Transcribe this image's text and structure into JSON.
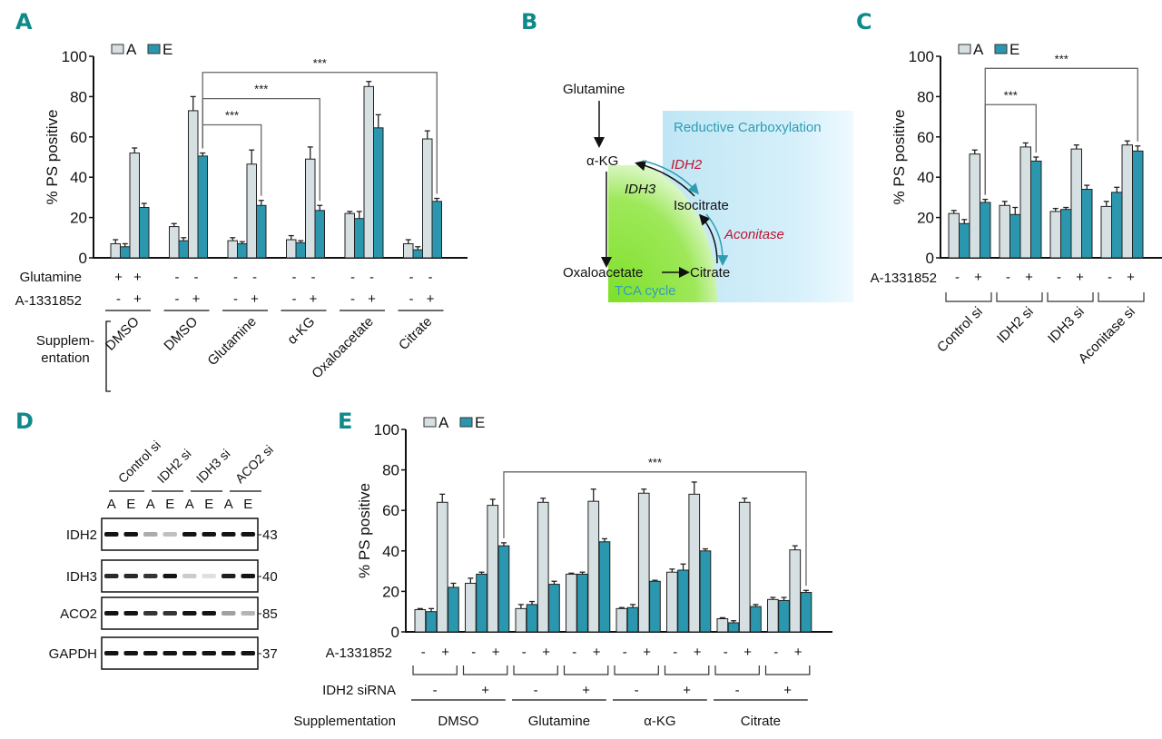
{
  "colors": {
    "A": "#d6dfe1",
    "E": "#2b97ae",
    "panel_label": "#0e8a8a",
    "rc_text": "#2e9db3",
    "enzyme_red": "#c0132e",
    "tca_text": "#33a0b6"
  },
  "panel_labels": {
    "A": "A",
    "B": "B",
    "C": "C",
    "D": "D",
    "E": "E"
  },
  "chart_data": [
    {
      "id": "A",
      "type": "bar",
      "ylabel": "% PS positive",
      "ylim": [
        0,
        100
      ],
      "yticks": [
        "0",
        "20",
        "40",
        "60",
        "80",
        "100"
      ],
      "legend": [
        "A",
        "E"
      ],
      "legend_position": "top-left",
      "groups": [
        {
          "bars": [
            {
              "s": "A",
              "v": 7,
              "err": 2
            },
            {
              "s": "E",
              "v": 5.5,
              "err": 1.5
            },
            {
              "s": "A",
              "v": 52,
              "err": 2.5
            },
            {
              "s": "E",
              "v": 25,
              "err": 2
            }
          ]
        },
        {
          "bars": [
            {
              "s": "A",
              "v": 15.5,
              "err": 1.5
            },
            {
              "s": "E",
              "v": 8.5,
              "err": 1.5
            },
            {
              "s": "A",
              "v": 73,
              "err": 7
            },
            {
              "s": "E",
              "v": 50.5,
              "err": 1.5
            }
          ]
        },
        {
          "bars": [
            {
              "s": "A",
              "v": 8.5,
              "err": 1.5
            },
            {
              "s": "E",
              "v": 7,
              "err": 1
            },
            {
              "s": "A",
              "v": 46.5,
              "err": 7
            },
            {
              "s": "E",
              "v": 26,
              "err": 2.5
            }
          ]
        },
        {
          "bars": [
            {
              "s": "A",
              "v": 9,
              "err": 2
            },
            {
              "s": "E",
              "v": 7.5,
              "err": 1
            },
            {
              "s": "A",
              "v": 49,
              "err": 6
            },
            {
              "s": "E",
              "v": 23.5,
              "err": 2.5
            }
          ]
        },
        {
          "bars": [
            {
              "s": "A",
              "v": 22,
              "err": 1
            },
            {
              "s": "E",
              "v": 19.5,
              "err": 3.5
            },
            {
              "s": "A",
              "v": 85,
              "err": 2.5
            },
            {
              "s": "E",
              "v": 64.5,
              "err": 6.5
            }
          ]
        },
        {
          "bars": [
            {
              "s": "A",
              "v": 7,
              "err": 2
            },
            {
              "s": "E",
              "v": 4,
              "err": 1.5
            },
            {
              "s": "A",
              "v": 59,
              "err": 4
            },
            {
              "s": "E",
              "v": 28,
              "err": 1.5
            }
          ]
        }
      ],
      "significance": [
        {
          "from_group": 1,
          "from_bar": 3,
          "to_group": 2,
          "to_bar": 3,
          "level": 66,
          "label": "***"
        },
        {
          "from_group": 1,
          "from_bar": 3,
          "to_group": 3,
          "to_bar": 3,
          "level": 79,
          "label": "***"
        },
        {
          "from_group": 1,
          "from_bar": 3,
          "to_group": 5,
          "to_bar": 3,
          "level": 92,
          "label": "***"
        }
      ],
      "row_labels": {
        "glutamine": "Glutamine",
        "drug": "A-1331852",
        "supplementation": "Supplem-\nentation"
      },
      "glutamine_row": [
        [
          "+",
          "+"
        ],
        [
          "-",
          "-"
        ],
        [
          "-",
          "-"
        ],
        [
          "-",
          "-"
        ],
        [
          "-",
          "-"
        ],
        [
          "-",
          "-"
        ]
      ],
      "drug_row": [
        [
          "-",
          "+"
        ],
        [
          "-",
          "+"
        ],
        [
          "-",
          "+"
        ],
        [
          "-",
          "+"
        ],
        [
          "-",
          "+"
        ],
        [
          "-",
          "+"
        ]
      ],
      "supplementation": [
        "DMSO",
        "DMSO",
        "Glutamine",
        "α-KG",
        "Oxaloacetate",
        "Citrate"
      ]
    },
    {
      "id": "C",
      "type": "bar",
      "ylabel": "% PS positive",
      "ylim": [
        0,
        100
      ],
      "yticks": [
        "0",
        "20",
        "40",
        "60",
        "80",
        "100"
      ],
      "legend": [
        "A",
        "E"
      ],
      "legend_position": "top-left",
      "groups": [
        {
          "bars": [
            {
              "s": "A",
              "v": 22,
              "err": 1.5
            },
            {
              "s": "E",
              "v": 17,
              "err": 2
            },
            {
              "s": "A",
              "v": 51.5,
              "err": 2
            },
            {
              "s": "E",
              "v": 27.5,
              "err": 1.5
            }
          ]
        },
        {
          "bars": [
            {
              "s": "A",
              "v": 26,
              "err": 2
            },
            {
              "s": "E",
              "v": 21.5,
              "err": 3.5
            },
            {
              "s": "A",
              "v": 55,
              "err": 2
            },
            {
              "s": "E",
              "v": 48,
              "err": 2
            }
          ]
        },
        {
          "bars": [
            {
              "s": "A",
              "v": 23,
              "err": 1.5
            },
            {
              "s": "E",
              "v": 24,
              "err": 1
            },
            {
              "s": "A",
              "v": 54,
              "err": 2
            },
            {
              "s": "E",
              "v": 34,
              "err": 2
            }
          ]
        },
        {
          "bars": [
            {
              "s": "A",
              "v": 25.5,
              "err": 2.5
            },
            {
              "s": "E",
              "v": 32.5,
              "err": 2.5
            },
            {
              "s": "A",
              "v": 56,
              "err": 2
            },
            {
              "s": "E",
              "v": 53,
              "err": 2.5
            }
          ]
        }
      ],
      "significance": [
        {
          "from_group": 0,
          "from_bar": 3,
          "to_group": 1,
          "to_bar": 3,
          "level": 76,
          "label": "***"
        },
        {
          "from_group": 0,
          "from_bar": 3,
          "to_group": 3,
          "to_bar": 3,
          "level": 94,
          "label": "***"
        }
      ],
      "row_labels": {
        "drug": "A-1331852"
      },
      "drug_row": [
        [
          "-",
          "+"
        ],
        [
          "-",
          "+"
        ],
        [
          "-",
          "+"
        ],
        [
          "-",
          "+"
        ]
      ],
      "groups_labels": [
        "Control si",
        "IDH2 si",
        "IDH3 si",
        "Aconitase si"
      ]
    },
    {
      "id": "E",
      "type": "bar",
      "ylabel": "% PS positive",
      "ylim": [
        0,
        100
      ],
      "yticks": [
        "0",
        "20",
        "40",
        "60",
        "80",
        "100"
      ],
      "legend": [
        "A",
        "E"
      ],
      "legend_position": "top-left",
      "groups": [
        {
          "bars": [
            {
              "s": "A",
              "v": 11,
              "err": 0.5
            },
            {
              "s": "E",
              "v": 10,
              "err": 1.5
            },
            {
              "s": "A",
              "v": 64,
              "err": 4
            },
            {
              "s": "E",
              "v": 22,
              "err": 2
            }
          ]
        },
        {
          "bars": [
            {
              "s": "A",
              "v": 24,
              "err": 2.5
            },
            {
              "s": "E",
              "v": 28.5,
              "err": 1
            },
            {
              "s": "A",
              "v": 62.5,
              "err": 3
            },
            {
              "s": "E",
              "v": 42.5,
              "err": 1.5
            }
          ]
        },
        {
          "bars": [
            {
              "s": "A",
              "v": 11.5,
              "err": 2
            },
            {
              "s": "E",
              "v": 13.5,
              "err": 1.5
            },
            {
              "s": "A",
              "v": 64,
              "err": 2
            },
            {
              "s": "E",
              "v": 23.5,
              "err": 1.5
            }
          ]
        },
        {
          "bars": [
            {
              "s": "A",
              "v": 28.5,
              "err": 0.5
            },
            {
              "s": "E",
              "v": 28.5,
              "err": 1
            },
            {
              "s": "A",
              "v": 64.5,
              "err": 6
            },
            {
              "s": "E",
              "v": 44.5,
              "err": 1.5
            }
          ]
        },
        {
          "bars": [
            {
              "s": "A",
              "v": 11.5,
              "err": 0.5
            },
            {
              "s": "E",
              "v": 12,
              "err": 1.5
            },
            {
              "s": "A",
              "v": 68.5,
              "err": 2
            },
            {
              "s": "E",
              "v": 25,
              "err": 0.5
            }
          ]
        },
        {
          "bars": [
            {
              "s": "A",
              "v": 29.5,
              "err": 1.5
            },
            {
              "s": "E",
              "v": 30.5,
              "err": 3
            },
            {
              "s": "A",
              "v": 68,
              "err": 6
            },
            {
              "s": "E",
              "v": 40,
              "err": 1
            }
          ]
        },
        {
          "bars": [
            {
              "s": "A",
              "v": 6.5,
              "err": 0.5
            },
            {
              "s": "E",
              "v": 4.5,
              "err": 1
            },
            {
              "s": "A",
              "v": 64,
              "err": 2
            },
            {
              "s": "E",
              "v": 12.5,
              "err": 1
            }
          ]
        },
        {
          "bars": [
            {
              "s": "A",
              "v": 16,
              "err": 1
            },
            {
              "s": "E",
              "v": 15.5,
              "err": 1.5
            },
            {
              "s": "A",
              "v": 40.5,
              "err": 2
            },
            {
              "s": "E",
              "v": 19.5,
              "err": 1
            }
          ]
        }
      ],
      "significance": [
        {
          "from_group": 1,
          "from_bar": 3,
          "to_group": 7,
          "to_bar": 3,
          "level": 79,
          "label": "***"
        }
      ],
      "row_labels": {
        "drug": "A-1331852",
        "sirna": "IDH2 siRNA",
        "supplementation": "Supplementation"
      },
      "drug_row": [
        [
          "-",
          "+"
        ],
        [
          "-",
          "+"
        ],
        [
          "-",
          "+"
        ],
        [
          "-",
          "+"
        ],
        [
          "-",
          "+"
        ],
        [
          "-",
          "+"
        ],
        [
          "-",
          "+"
        ],
        [
          "-",
          "+"
        ]
      ],
      "sirna_row": [
        "-",
        "+",
        "-",
        "+",
        "-",
        "+",
        "-",
        "+"
      ],
      "supplementation": [
        "DMSO",
        "Glutamine",
        "α-KG",
        "Citrate"
      ]
    }
  ],
  "diagram_B": {
    "glutamine": "Glutamine",
    "akg": "α-KG",
    "isocitrate": "Isocitrate",
    "citrate": "Citrate",
    "oxaloacetate": "Oxaloacetate",
    "idh2": "IDH2",
    "idh3": "IDH3",
    "aconitase": "Aconitase",
    "reductive": "Reductive Carboxylation",
    "tca": "TCA cycle"
  },
  "blot_D": {
    "groups": [
      "Control si",
      "IDH2 si",
      "IDH3 si",
      "ACO2 si"
    ],
    "lanes": [
      "A",
      "E",
      "A",
      "E",
      "A",
      "E",
      "A",
      "E"
    ],
    "proteins": [
      {
        "name": "IDH2",
        "kda": "43",
        "intensity": [
          1,
          1,
          0.3,
          0.2,
          1,
          1,
          1,
          1
        ]
      },
      {
        "name": "IDH3",
        "kda": "40",
        "intensity": [
          0.9,
          0.9,
          0.85,
          1,
          0.15,
          0.05,
          0.95,
          1
        ]
      },
      {
        "name": "ACO2",
        "kda": "85",
        "intensity": [
          1,
          1,
          0.85,
          0.85,
          1,
          1,
          0.35,
          0.25
        ]
      },
      {
        "name": "GAPDH",
        "kda": "37",
        "intensity": [
          1,
          1,
          1,
          1,
          1,
          1,
          1,
          1
        ]
      }
    ]
  }
}
